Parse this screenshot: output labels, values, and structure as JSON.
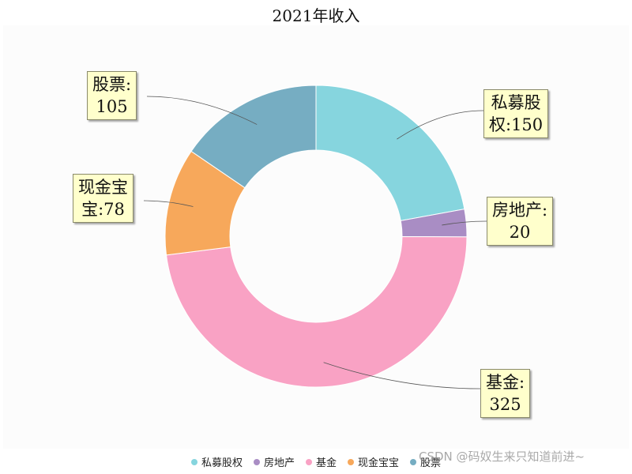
{
  "chart_data": {
    "type": "pie",
    "title": "2021年收入",
    "donut": true,
    "categories": [
      "私募股权",
      "房地产",
      "基金",
      "现金宝宝",
      "股票"
    ],
    "values": [
      150,
      20,
      325,
      78,
      105
    ],
    "colors": [
      "#86d5de",
      "#a98dc4",
      "#f9a2c4",
      "#f7a85b",
      "#76adc2"
    ],
    "labels": [
      {
        "line1": "私募股",
        "line2": "权:150"
      },
      {
        "line1": "房地产:",
        "line2": "20"
      },
      {
        "line1": "基金:",
        "line2": "325"
      },
      {
        "line1": "现金宝",
        "line2": "宝:78"
      },
      {
        "line1": "股票:",
        "line2": "105"
      }
    ],
    "legend_position": "bottom-center"
  },
  "watermark": "CSDN @码奴生来只知道前进~"
}
